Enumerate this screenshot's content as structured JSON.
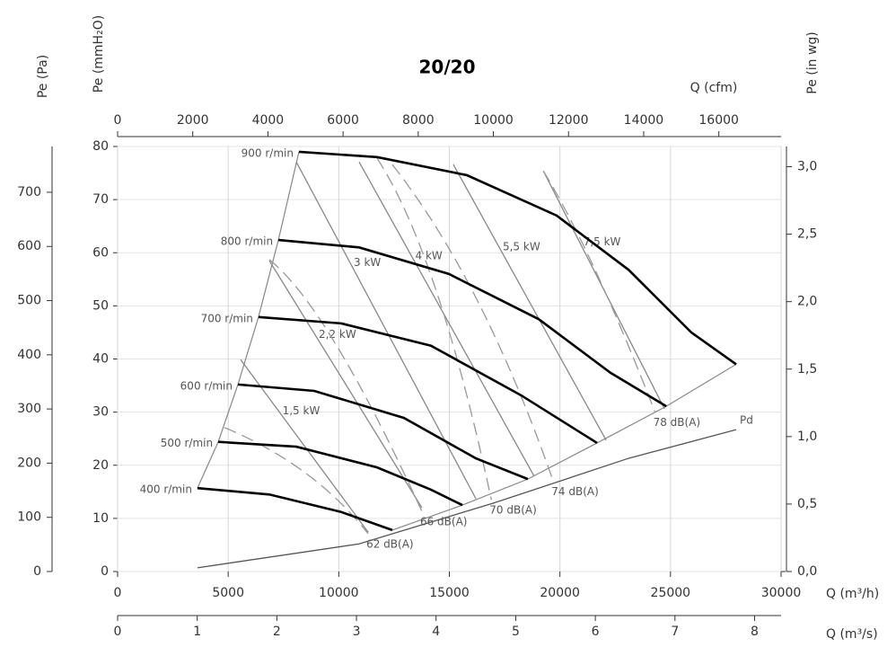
{
  "chart_data": {
    "type": "line",
    "title": "20/20",
    "x_label": "Q (m³/h)",
    "xlim": [
      0,
      30000
    ],
    "xticks": [
      0,
      5000,
      10000,
      15000,
      20000,
      25000,
      30000
    ],
    "y_label": "Pe (mmH₂O)",
    "ylim": [
      0,
      80
    ],
    "yticks": [
      0,
      10,
      20,
      30,
      40,
      50,
      60,
      70,
      80
    ],
    "grid": true,
    "extra_axes": [
      {
        "side": "left",
        "label": "Pe (Pa)",
        "lim": [
          0,
          784.5
        ],
        "ticks": [
          0,
          100,
          200,
          300,
          400,
          500,
          600,
          700
        ]
      },
      {
        "side": "right",
        "label": "Pe (in wg)",
        "lim": [
          0,
          3.15
        ],
        "ticks": [
          {
            "value": 0,
            "label": "0,0"
          },
          {
            "value": 0.5,
            "label": "0,5"
          },
          {
            "value": 1,
            "label": "1,0"
          },
          {
            "value": 1.5,
            "label": "1,5"
          },
          {
            "value": 2,
            "label": "2,0"
          },
          {
            "value": 2.5,
            "label": "2,5"
          },
          {
            "value": 3,
            "label": "3,0"
          }
        ]
      },
      {
        "side": "top",
        "label": "Q (cfm)",
        "lim": [
          0,
          17657
        ],
        "ticks": [
          0,
          2000,
          4000,
          6000,
          8000,
          10000,
          12000,
          14000,
          16000
        ]
      },
      {
        "side": "bottom",
        "label": "Q (m³/s)",
        "lim": [
          0,
          8.333
        ],
        "ticks": [
          0,
          1,
          2,
          3,
          4,
          5,
          6,
          7,
          8
        ]
      }
    ],
    "series": [
      {
        "name": "900 r/min",
        "color": "#000000",
        "x": [
          8200,
          11730,
          15790,
          19850,
          23100,
          25940,
          27970
        ],
        "values": [
          79,
          78,
          74.6,
          67,
          56.8,
          45,
          39
        ]
      },
      {
        "name": "800 r/min",
        "color": "#000000",
        "x": [
          7270,
          10920,
          14980,
          19040,
          22290,
          24810
        ],
        "values": [
          62.4,
          61,
          56,
          47.5,
          37.4,
          31.1
        ]
      },
      {
        "name": "700 r/min",
        "color": "#000000",
        "x": [
          6370,
          10110,
          14170,
          18230,
          21680
        ],
        "values": [
          47.9,
          46.7,
          42.5,
          33.2,
          24.2
        ]
      },
      {
        "name": "600 r/min",
        "color": "#000000",
        "x": [
          5440,
          8890,
          12950,
          16200,
          18550
        ],
        "values": [
          35.2,
          34,
          28.9,
          21.3,
          17.4
        ]
      },
      {
        "name": "500 r/min",
        "color": "#000000",
        "x": [
          4550,
          8080,
          11730,
          14170,
          15590
        ],
        "values": [
          24.4,
          23.5,
          19.6,
          15.4,
          12.5
        ]
      },
      {
        "name": "400 r/min",
        "color": "#000000",
        "x": [
          3610,
          6860,
          10110,
          12420
        ],
        "values": [
          15.7,
          14.5,
          11.2,
          7.8
        ]
      }
    ],
    "power_lines": [
      {
        "name": "1,5 kW",
        "color": "#888888",
        "x": [
          5560,
          11330
        ],
        "values": [
          39.9,
          7.4
        ]
      },
      {
        "name": "2,2 kW",
        "color": "#888888",
        "x": [
          6860,
          13760
        ],
        "values": [
          58.5,
          12
        ]
      },
      {
        "name": "3 kW",
        "color": "#888888",
        "x": [
          8080,
          16200
        ],
        "values": [
          77.1,
          13.7
        ]
      },
      {
        "name": "4 kW",
        "color": "#888888",
        "x": [
          10920,
          18840
        ],
        "values": [
          77.1,
          17.9
        ]
      },
      {
        "name": "5,5 kW",
        "color": "#888888",
        "x": [
          15180,
          22090
        ],
        "values": [
          76.6,
          24.7
        ]
      },
      {
        "name": "7,5 kW",
        "color": "#888888",
        "x": [
          19250,
          24730
        ],
        "values": [
          75.4,
          30.6
        ]
      }
    ],
    "noise_lines": [
      {
        "name": "62 dB(A)",
        "color": "#999999",
        "x": [
          4830,
          8900,
          11330
        ],
        "values": [
          27.1,
          20,
          7.1
        ]
      },
      {
        "name": "66 dB(A)",
        "color": "#999999",
        "x": [
          6860,
          9500,
          13760
        ],
        "values": [
          58.7,
          50,
          11.3
        ]
      },
      {
        "name": "70 dB(A)",
        "color": "#999999",
        "x": [
          11730,
          14500,
          16900
        ],
        "values": [
          77.8,
          60,
          13.5
        ]
      },
      {
        "name": "74 dB(A)",
        "color": "#999999",
        "x": [
          12420,
          16500,
          19700
        ],
        "values": [
          76.6,
          55,
          17
        ]
      },
      {
        "name": "78 dB(A)",
        "color": "#999999",
        "x": [
          19250,
          21500,
          24300
        ],
        "values": [
          75.4,
          60,
          30
        ]
      }
    ],
    "pd_curve": {
      "name": "Pd",
      "color": "#555555",
      "x": [
        3610,
        10920,
        17010,
        23100,
        27970
      ],
      "values": [
        0.7,
        5.2,
        12.9,
        21.3,
        26.7
      ]
    }
  }
}
